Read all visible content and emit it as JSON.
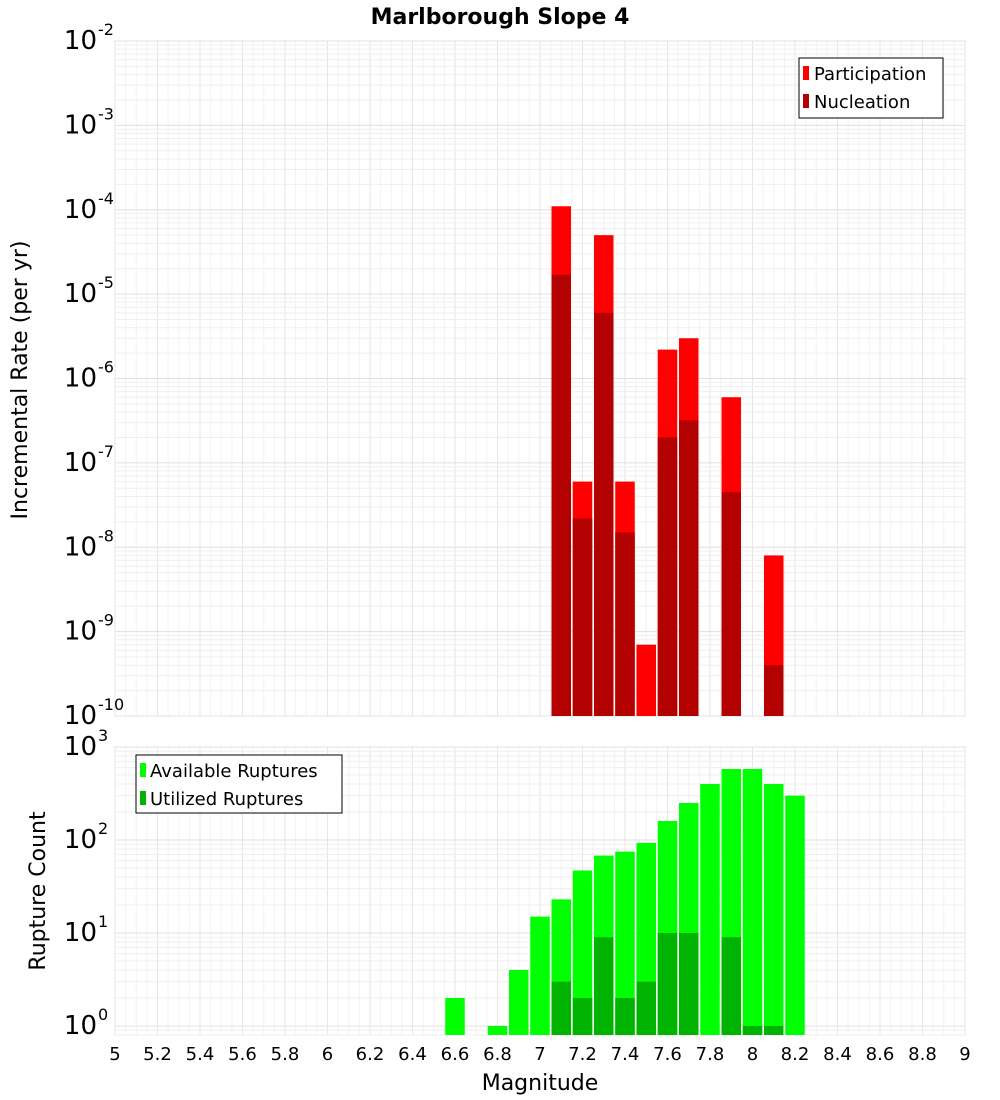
{
  "title": "Marlborough Slope 4",
  "x_axis": {
    "label": "Magnitude",
    "ticks": [
      "5",
      "5.2",
      "5.4",
      "5.6",
      "5.8",
      "6",
      "6.2",
      "6.4",
      "6.6",
      "6.8",
      "7",
      "7.2",
      "7.4",
      "7.6",
      "7.8",
      "8",
      "8.2",
      "8.4",
      "8.6",
      "8.8",
      "9"
    ]
  },
  "top_ylabel": "Incremental Rate (per yr)",
  "bottom_ylabel": "Rupture Count",
  "colors": {
    "participation": "#ff0000",
    "nucleation": "#b30000",
    "available": "#00ff00",
    "utilized": "#00b300"
  },
  "chart_data": [
    {
      "type": "bar",
      "title": "Marlborough Slope 4",
      "xlabel": "Magnitude",
      "ylabel": "Incremental Rate (per yr)",
      "log_y": true,
      "xlim": [
        5,
        9
      ],
      "ylim": [
        1e-10,
        0.01
      ],
      "grid": true,
      "legend_position": "top-right",
      "series": [
        {
          "name": "Participation",
          "x": [
            7.1,
            7.2,
            7.3,
            7.4,
            7.5,
            7.6,
            7.7,
            7.9,
            8.1
          ],
          "values": [
            0.00011,
            6e-08,
            5e-05,
            6e-08,
            7e-10,
            2.2e-06,
            3e-06,
            6e-07,
            8e-09
          ]
        },
        {
          "name": "Nucleation",
          "x": [
            7.1,
            7.2,
            7.3,
            7.4,
            7.6,
            7.7,
            7.9,
            8.1
          ],
          "values": [
            1.7e-05,
            2.2e-08,
            6e-06,
            1.5e-08,
            2e-07,
            3.2e-07,
            4.5e-08,
            4e-10
          ]
        }
      ],
      "y_ticks": [
        {
          "base": "10",
          "exp": "-10",
          "value": 1e-10
        },
        {
          "base": "10",
          "exp": "-9",
          "value": 1e-09
        },
        {
          "base": "10",
          "exp": "-8",
          "value": 1e-08
        },
        {
          "base": "10",
          "exp": "-7",
          "value": 1e-07
        },
        {
          "base": "10",
          "exp": "-6",
          "value": 1e-06
        },
        {
          "base": "10",
          "exp": "-5",
          "value": 1e-05
        },
        {
          "base": "10",
          "exp": "-4",
          "value": 0.0001
        },
        {
          "base": "10",
          "exp": "-3",
          "value": 0.001
        },
        {
          "base": "10",
          "exp": "-2",
          "value": 0.01
        }
      ]
    },
    {
      "type": "bar",
      "xlabel": "Magnitude",
      "ylabel": "Rupture Count",
      "log_y": true,
      "xlim": [
        5,
        9
      ],
      "ylim": [
        0.8,
        1000
      ],
      "grid": true,
      "legend_position": "top-left",
      "series": [
        {
          "name": "Available Ruptures",
          "x": [
            6.6,
            6.8,
            6.9,
            7.0,
            7.1,
            7.2,
            7.3,
            7.4,
            7.5,
            7.6,
            7.7,
            7.8,
            7.9,
            8.0,
            8.1,
            8.2
          ],
          "values": [
            2,
            1,
            4,
            15,
            23,
            47,
            68,
            75,
            93,
            160,
            250,
            400,
            580,
            580,
            400,
            300
          ]
        },
        {
          "name": "Utilized Ruptures",
          "x": [
            7.1,
            7.2,
            7.3,
            7.4,
            7.5,
            7.6,
            7.7,
            7.9,
            8.0,
            8.1
          ],
          "values": [
            3,
            2,
            9,
            2,
            3,
            10,
            10,
            9,
            1,
            1
          ]
        }
      ],
      "y_ticks": [
        {
          "base": "10",
          "exp": "0",
          "value": 1
        },
        {
          "base": "10",
          "exp": "1",
          "value": 10
        },
        {
          "base": "10",
          "exp": "2",
          "value": 100
        },
        {
          "base": "10",
          "exp": "3",
          "value": 1000
        }
      ]
    }
  ]
}
